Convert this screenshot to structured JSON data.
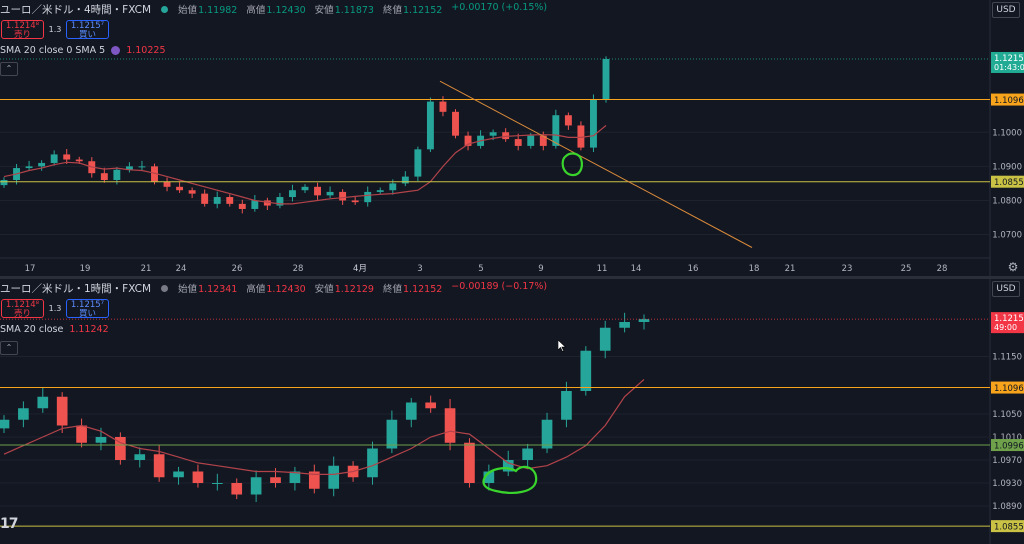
{
  "colors": {
    "bg": "#131722",
    "grid": "#1e222d",
    "up": "#26a69a",
    "down": "#ef5350",
    "sma": "#b2434a",
    "orange_line": "#f7a31c",
    "yellow_line": "#c9c244",
    "green_line": "#6ea14a",
    "trend_line": "#d98a3a",
    "circle": "#39d52c",
    "axis_text": "#b2b5be",
    "price_tag_up": "#22ab94",
    "price_tag_down": "#f23645"
  },
  "pane1": {
    "title": "ユーロ／米ドル・4時間・FXCM",
    "ohlc": {
      "open_label": "始値",
      "open": "1.11982",
      "high_label": "高値",
      "high": "1.12430",
      "low_label": "安値",
      "low": "1.11873",
      "close_label": "終値",
      "close": "1.12152",
      "change": "+0.00170 (+0.15%)"
    },
    "sell_price": "1.1214⁸",
    "sell_label": "売り",
    "spread": "1.3",
    "buy_price": "1.1215⁷",
    "buy_label": "買い",
    "indicator_name": "SMA 20 close 0 SMA 5",
    "indicator_value": "1.10225",
    "currency": "USD",
    "price_tag": "1.1215",
    "countdown": "01:43:0",
    "time_labels": [
      "17",
      "19",
      "21",
      "24",
      "26",
      "28",
      "4月",
      "3",
      "5",
      "9",
      "11",
      "14",
      "16",
      "18",
      "21",
      "23",
      "25",
      "28"
    ],
    "tick_labels": [
      {
        "label": "1.1000",
        "value": 1.1
      },
      {
        "label": "1.0900",
        "value": 1.09
      },
      {
        "label": "1.0800",
        "value": 1.08
      },
      {
        "label": "1.0700",
        "value": 1.07
      }
    ],
    "levels": [
      {
        "label": "1.1096",
        "value": 1.1096,
        "kind": "orange"
      },
      {
        "label": "1.0855",
        "value": 1.0855,
        "kind": "yellow"
      }
    ]
  },
  "pane2": {
    "title": "ユーロ／米ドル・1時間・FXCM",
    "ohlc": {
      "open_label": "始値",
      "open": "1.12341",
      "high_label": "高値",
      "high": "1.12430",
      "low_label": "安値",
      "low": "1.12129",
      "close_label": "終値",
      "close": "1.12152",
      "change": "−0.00189 (−0.17%)"
    },
    "sell_price": "1.1214⁸",
    "sell_label": "売り",
    "spread": "1.3",
    "buy_price": "1.1215⁷",
    "buy_label": "買い",
    "indicator_name": "SMA 20 close",
    "indicator_value": "1.11242",
    "currency": "USD",
    "price_tag": "1.1215",
    "countdown": "49:00",
    "tick_labels": [
      {
        "label": "1.1150",
        "value": 1.115
      },
      {
        "label": "1.1050",
        "value": 1.105
      },
      {
        "label": "1.1010",
        "value": 1.101
      },
      {
        "label": "1.0970",
        "value": 1.097
      },
      {
        "label": "1.0930",
        "value": 1.093
      },
      {
        "label": "1.0890",
        "value": 1.089
      }
    ],
    "levels": [
      {
        "label": "1.1096",
        "value": 1.1096,
        "kind": "orange"
      },
      {
        "label": "1.0996",
        "value": 1.0996,
        "kind": "green"
      },
      {
        "label": "1.0855",
        "value": 1.0855,
        "kind": "yellow"
      }
    ]
  },
  "chart_data": [
    {
      "type": "candlestick",
      "title": "ユーロ／米ドル・4時間・FXCM",
      "ylim": [
        1.064,
        1.13
      ],
      "series": [
        {
          "name": "SMA 20 close 0 SMA 5",
          "kind": "price",
          "values": [
            1.087,
            1.0878,
            1.0888,
            1.0895,
            1.0905,
            1.0912,
            1.091,
            1.0898,
            1.0892,
            1.0895,
            1.089,
            1.0888,
            1.088,
            1.087,
            1.086,
            1.085,
            1.084,
            1.083,
            1.082,
            1.081,
            1.08,
            1.0795,
            1.079,
            1.079,
            1.0795,
            1.08,
            1.0805,
            1.0808,
            1.0812,
            1.0815,
            1.0818,
            1.082,
            1.0825,
            1.083,
            1.0855,
            1.09,
            1.094,
            1.0965,
            1.0975,
            1.0982,
            1.0988,
            1.099,
            1.0992,
            1.0993,
            1.0992,
            1.0985,
            1.0985,
            1.099,
            1.102
          ]
        },
        {
          "name": "candles_close",
          "kind": "price",
          "values": [
            1.086,
            1.0895,
            1.09,
            1.091,
            1.0935,
            1.092,
            1.0915,
            1.088,
            1.086,
            1.089,
            1.09,
            1.09,
            1.0855,
            1.084,
            1.083,
            1.082,
            1.079,
            1.081,
            1.079,
            1.0775,
            1.08,
            1.0785,
            1.081,
            1.083,
            1.084,
            1.0815,
            1.0825,
            1.08,
            1.0795,
            1.0825,
            1.083,
            1.085,
            1.087,
            1.095,
            1.109,
            1.106,
            1.099,
            1.096,
            1.099,
            1.1,
            1.098,
            1.096,
            1.099,
            1.096,
            1.105,
            1.102,
            1.0955,
            1.1095,
            1.1215
          ]
        }
      ],
      "trendline": {
        "from": [
          1.115,
          "2nd-anchor"
        ],
        "to": [
          1.066,
          "end"
        ]
      }
    },
    {
      "type": "candlestick",
      "title": "ユーロ／米ドル・1時間・FXCM",
      "ylim": [
        1.085,
        1.125
      ],
      "series": [
        {
          "name": "SMA 20 close",
          "kind": "price",
          "values": [
            1.098,
            1.0995,
            1.101,
            1.1025,
            1.103,
            1.102,
            1.1,
            1.099,
            1.0985,
            1.0975,
            1.0965,
            1.096,
            1.0955,
            1.095,
            1.095,
            1.0948,
            1.0945,
            1.0945,
            1.095,
            1.096,
            1.0975,
            1.099,
            1.101,
            1.102,
            1.1015,
            1.099,
            1.0965,
            1.0955,
            1.096,
            1.0975,
            1.0995,
            1.103,
            1.108,
            1.111
          ]
        },
        {
          "name": "candles_close",
          "kind": "price",
          "values": [
            1.104,
            1.106,
            1.108,
            1.103,
            1.1,
            1.101,
            1.097,
            1.098,
            1.094,
            1.095,
            1.093,
            1.093,
            1.091,
            1.094,
            1.093,
            1.095,
            1.092,
            1.096,
            1.094,
            1.099,
            1.104,
            1.107,
            1.106,
            1.1,
            1.093,
            1.095,
            1.097,
            1.099,
            1.104,
            1.109,
            1.116,
            1.12,
            1.121,
            1.1215
          ]
        }
      ]
    }
  ]
}
